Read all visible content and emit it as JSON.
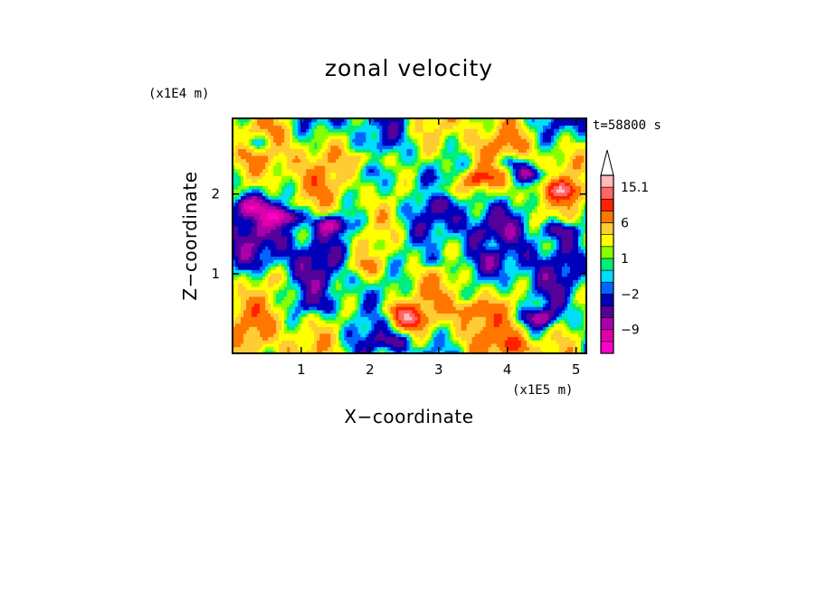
{
  "chart_data": {
    "type": "heatmap",
    "title": "zonal velocity",
    "xlabel": "X−coordinate",
    "ylabel": "Z−coordinate",
    "x_unit": "(x1E5 m)",
    "y_unit": "(x1E4 m)",
    "time_label": "t=58800 s",
    "xlim": [
      0.0,
      5.15
    ],
    "ylim": [
      0.0,
      2.95
    ],
    "x_ticks": [
      {
        "value": 1,
        "label": "1"
      },
      {
        "value": 2,
        "label": "2"
      },
      {
        "value": 3,
        "label": "3"
      },
      {
        "value": 4,
        "label": "4"
      },
      {
        "value": 5,
        "label": "5"
      }
    ],
    "y_ticks": [
      {
        "value": 1,
        "label": "1"
      },
      {
        "value": 2,
        "label": "2"
      }
    ],
    "colorbar": {
      "levels": [
        -15,
        -12,
        -9,
        -6,
        -4,
        -2,
        -1,
        0,
        1,
        2,
        4,
        6,
        9,
        12,
        15.1
      ],
      "colors": [
        "#ff00cc",
        "#dd00aa",
        "#aa00aa",
        "#550099",
        "#0000bb",
        "#0066ff",
        "#00ddff",
        "#00ee77",
        "#88ff00",
        "#ffff00",
        "#ffcc33",
        "#ff7700",
        "#ff2200",
        "#ff6666",
        "#ffbbbb"
      ],
      "labels": [
        {
          "value": -9,
          "label": "−9"
        },
        {
          "value": -2,
          "label": "−2"
        },
        {
          "value": 1,
          "label": "1"
        },
        {
          "value": 6,
          "label": "6"
        },
        {
          "value": 15.1,
          "label": "15.1"
        }
      ],
      "arrow": "top"
    },
    "features": [
      {
        "x": 0.75,
        "z": 1.72,
        "value": -10
      },
      {
        "x": 1.45,
        "z": 1.62,
        "value": -9
      },
      {
        "x": 0.25,
        "z": 1.85,
        "value": -8
      },
      {
        "x": 2.55,
        "z": 0.42,
        "value": 9
      },
      {
        "x": 2.4,
        "z": 0.55,
        "value": 7
      },
      {
        "x": 3.55,
        "z": 2.2,
        "value": 8
      },
      {
        "x": 3.1,
        "z": 2.05,
        "value": 6
      },
      {
        "x": 4.35,
        "z": 2.25,
        "value": -9
      },
      {
        "x": 4.05,
        "z": 2.4,
        "value": -7
      },
      {
        "x": 3.45,
        "z": 0.55,
        "value": 5
      },
      {
        "x": 1.2,
        "z": 0.6,
        "value": -3
      },
      {
        "x": 4.45,
        "z": 0.45,
        "value": -8
      },
      {
        "x": 2.0,
        "z": 2.45,
        "value": 5
      },
      {
        "x": 0.35,
        "z": 2.65,
        "value": -6
      },
      {
        "x": 4.85,
        "z": 2.05,
        "value": 8
      },
      {
        "x": 4.75,
        "z": 1.55,
        "value": -6
      },
      {
        "x": 1.9,
        "z": 1.1,
        "value": 4
      },
      {
        "x": 0.55,
        "z": 0.95,
        "value": 3
      },
      {
        "x": 2.95,
        "z": 1.15,
        "value": -3
      },
      {
        "x": 3.8,
        "z": 1.35,
        "value": 4
      },
      {
        "x": 2.3,
        "z": 0.15,
        "value": -5
      },
      {
        "x": 4.1,
        "z": 0.1,
        "value": 6
      }
    ]
  }
}
